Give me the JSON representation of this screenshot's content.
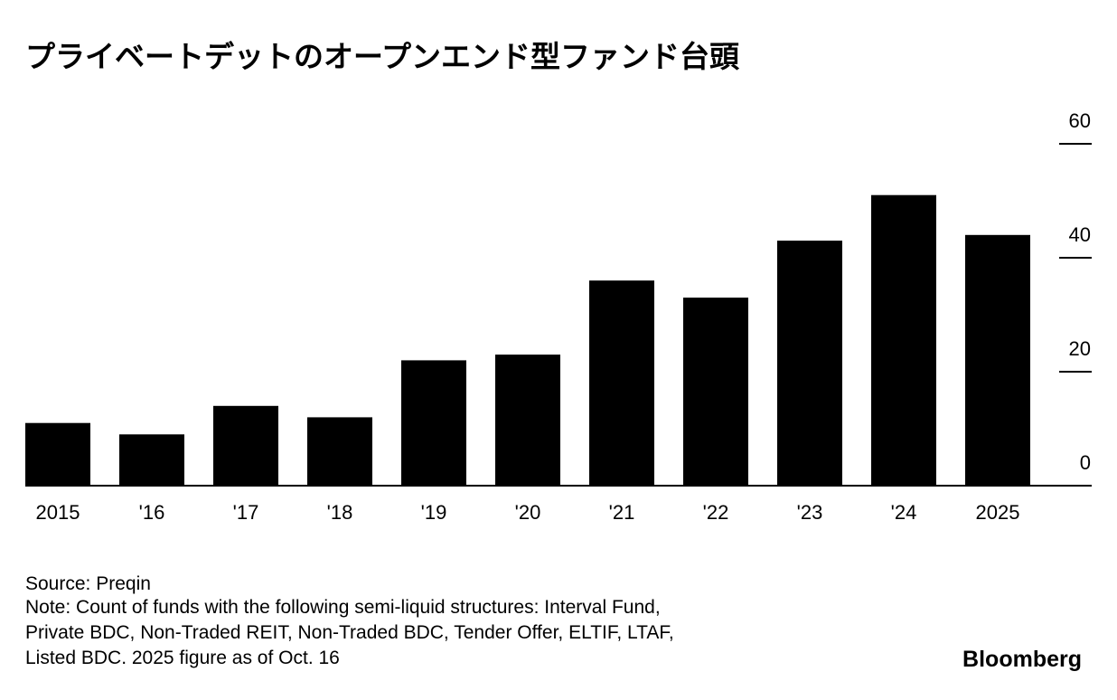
{
  "chart_data": {
    "type": "bar",
    "title": "プライベートデットのオープンエンド型ファンド台頭",
    "categories": [
      "2015",
      "'16",
      "'17",
      "'18",
      "'19",
      "'20",
      "'21",
      "'22",
      "'23",
      "'24",
      "2025"
    ],
    "values": [
      11,
      9,
      14,
      12,
      22,
      23,
      36,
      33,
      43,
      51,
      44
    ],
    "color": "#000000",
    "ylim": [
      0,
      60
    ],
    "yticks": [
      0,
      20,
      40,
      60
    ],
    "source": "Source: Preqin",
    "note_lines": [
      "Note: Count of funds with the following semi-liquid structures: Interval Fund,",
      "Private BDC, Non-Traded REIT, Non-Traded BDC, Tender Offer, ELTIF, LTAF,",
      "Listed BDC. 2025 figure as of Oct. 16"
    ],
    "brand": "Bloomberg"
  }
}
